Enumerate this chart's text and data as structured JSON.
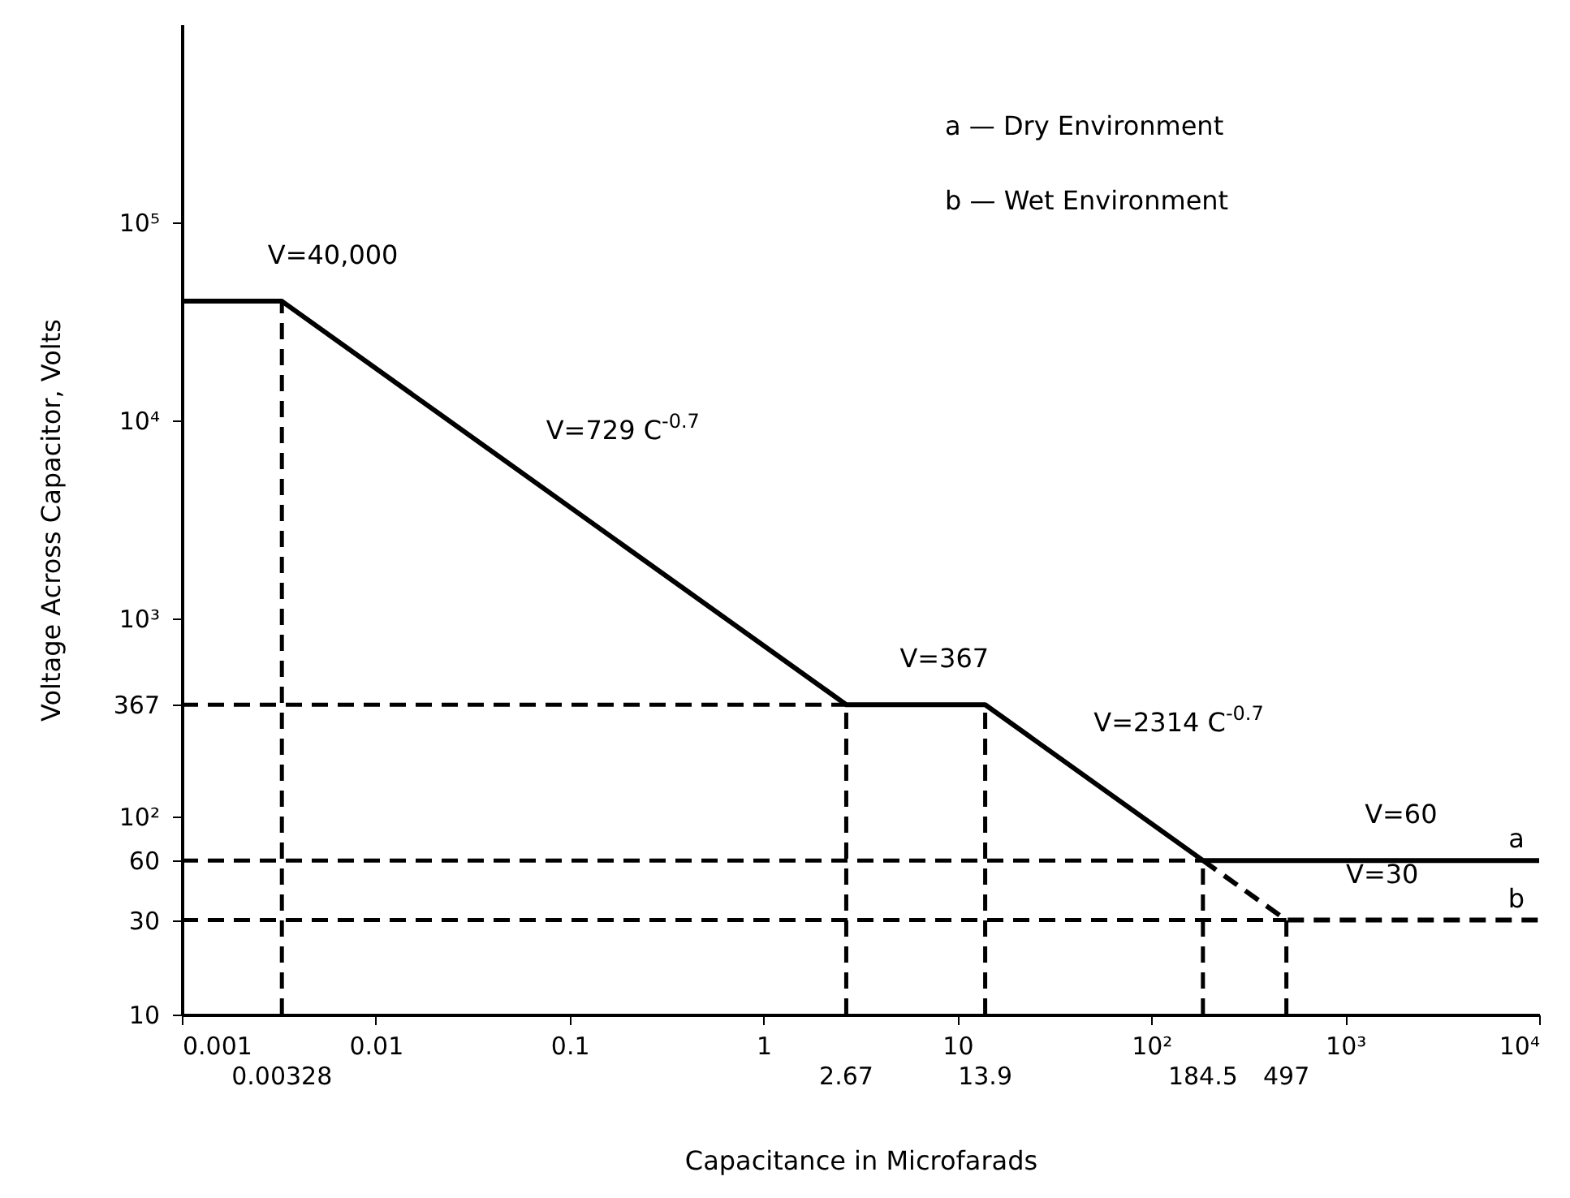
{
  "chart_data": {
    "type": "line",
    "xlabel": "Capacitance in Microfarads",
    "ylabel": "Voltage Across Capacitor, Volts",
    "log": "xy",
    "grid": false,
    "xlim": [
      0.001,
      10000
    ],
    "ylim": [
      10,
      1000000
    ],
    "xticks": [
      0.001,
      0.01,
      0.1,
      1,
      10,
      {
        "value": 100,
        "label": "10²"
      },
      {
        "value": 1000,
        "label": "10³"
      },
      {
        "value": 10000,
        "label": "10⁴"
      }
    ],
    "yticks": [
      10,
      30,
      60,
      {
        "value": 100,
        "label": "10²"
      },
      367,
      {
        "value": 1000,
        "label": "10³"
      },
      {
        "value": 10000,
        "label": "10⁴"
      },
      {
        "value": 100000,
        "label": "10⁵"
      }
    ],
    "series": [
      {
        "name": "a",
        "color": "#000000",
        "line_style": "solid",
        "x": [
          0.001,
          0.00328,
          2.67,
          13.9,
          184.5,
          10000
        ],
        "values": [
          40000,
          40000,
          367,
          367,
          60,
          60
        ]
      },
      {
        "name": "b",
        "color": "#000000",
        "line_style": "dashed",
        "x": [
          184.5,
          497,
          10000
        ],
        "values": [
          60,
          30,
          30
        ]
      }
    ],
    "ref_lines": [
      {
        "axis": "y",
        "value": 367,
        "line_style": "dashed"
      },
      {
        "axis": "y",
        "value": 60,
        "line_style": "dashed"
      },
      {
        "axis": "y",
        "value": 30,
        "line_style": "dashed"
      },
      {
        "axis": "x",
        "value": 0.00328,
        "label": "0.00328",
        "line_style": "dashed"
      },
      {
        "axis": "x",
        "value": 2.67,
        "label": "2.67",
        "line_style": "dashed"
      },
      {
        "axis": "x",
        "value": 13.9,
        "label": "13.9",
        "line_style": "dashed"
      },
      {
        "axis": "x",
        "value": 184.5,
        "label": "184.5",
        "line_style": "dashed"
      },
      {
        "axis": "x",
        "value": 497,
        "label": "497",
        "line_style": "dashed"
      }
    ],
    "annotations": [
      "a — Dry Environment",
      "b — Wet Environment",
      {
        "text": "V=40,000",
        "x": 0.0022,
        "y": 40000
      },
      {
        "text": "V=729 C$^{-0.7}$",
        "x": 0.06,
        "y": 5220
      },
      {
        "text": "V=367",
        "x": 4,
        "y": 367
      },
      {
        "text": "V=2314 C$^{-0.7}$",
        "x": 40,
        "y": 175
      },
      {
        "text": "V=60",
        "x": 1000,
        "y": 60
      },
      {
        "text": "V=30",
        "x": 800,
        "y": 30
      }
    ]
  }
}
